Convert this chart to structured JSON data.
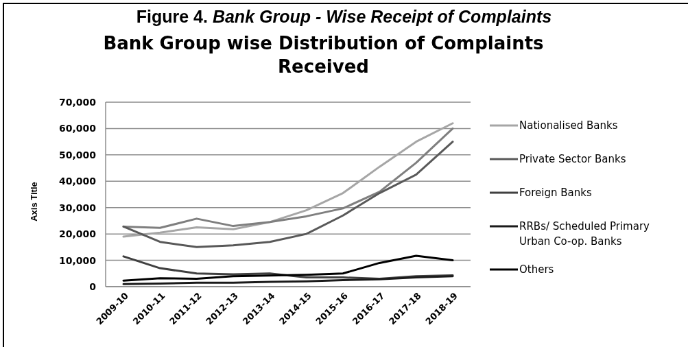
{
  "chart_data": {
    "type": "line",
    "title": "Figure 4. Bank Group - Wise Receipt of Complaints",
    "subtitle": "Bank Group wise Distribution of Complaints Received",
    "ylabel": "Axis Title",
    "categories": [
      "2009-10",
      "2010-11",
      "2011-12",
      "2012-13",
      "2013-14",
      "2014-15",
      "2015-16",
      "2016-17",
      "2017-18",
      "2018-19"
    ],
    "series": [
      {
        "name": "Nationalised Banks",
        "color": "#a6a6a6",
        "values": [
          19000,
          20500,
          22500,
          21800,
          24500,
          29000,
          35500,
          45500,
          55000,
          62000
        ]
      },
      {
        "color": "#7f7f7f",
        "values": [
          22800,
          22300,
          25800,
          23000,
          24500,
          26700,
          29700,
          36000,
          47000,
          60000
        ]
      },
      {
        "name": "Private Sector Banks",
        "color": "#595959",
        "values": [
          22800,
          17000,
          15000,
          15700,
          17000,
          20000,
          27000,
          35500,
          42500,
          55000
        ]
      },
      {
        "name": "Foreign Banks",
        "color": "#404040",
        "values": [
          11500,
          7000,
          5000,
          4700,
          5000,
          3500,
          3500,
          3000,
          4000,
          4300
        ]
      },
      {
        "name": "RRBs/ Scheduled Primary Urban Co-op. Banks",
        "color": "#1a1a1a",
        "values": [
          1000,
          1200,
          1500,
          1500,
          1800,
          2000,
          2500,
          2800,
          3500,
          4000
        ]
      },
      {
        "name": "Others",
        "color": "#000000",
        "values": [
          2300,
          3200,
          3000,
          4000,
          4200,
          4500,
          5000,
          9000,
          11700,
          10000
        ]
      }
    ],
    "ylim": [
      0,
      70000
    ],
    "yticks": [
      {
        "value": 0,
        "label": "0"
      },
      {
        "value": 10000,
        "label": "10,000"
      },
      {
        "value": 20000,
        "label": "20,000"
      },
      {
        "value": 30000,
        "label": "30,000"
      },
      {
        "value": 40000,
        "label": "40,000"
      },
      {
        "value": 50000,
        "label": "50,000"
      },
      {
        "value": 60000,
        "label": "60,000"
      },
      {
        "value": 70000,
        "label": "70,000"
      }
    ],
    "grid": "y",
    "legend": "right",
    "marker": "none",
    "line_style": "solid"
  }
}
